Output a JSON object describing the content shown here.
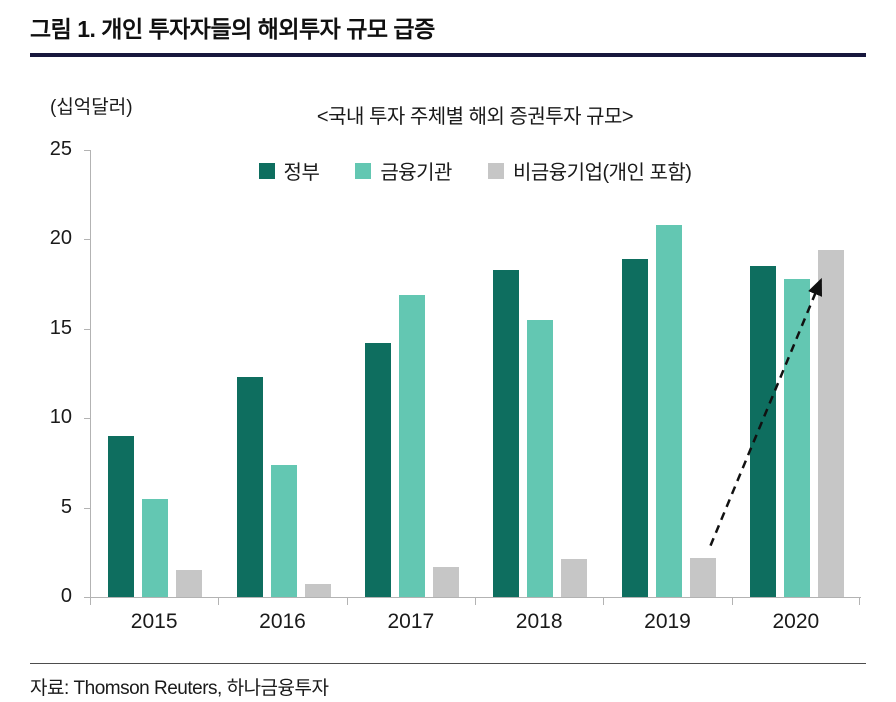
{
  "header": {
    "title": "그림 1. 개인 투자자들의 해외투자 규모 급증"
  },
  "chart_data": {
    "type": "bar",
    "title": "<국내 투자 주체별 해외 증권투자 규모>",
    "unit_label": "(십억달러)",
    "categories": [
      "2015",
      "2016",
      "2017",
      "2018",
      "2019",
      "2020"
    ],
    "series": [
      {
        "name": "정부",
        "color": "#0e6e5f",
        "values": [
          9.0,
          12.3,
          14.2,
          18.3,
          18.9,
          18.5
        ]
      },
      {
        "name": "금융기관",
        "color": "#63c7b2",
        "values": [
          5.5,
          7.4,
          16.9,
          15.5,
          20.8,
          17.8
        ]
      },
      {
        "name": "비금융기업(개인 포함)",
        "color": "#c6c6c6",
        "values": [
          1.5,
          0.7,
          1.7,
          2.1,
          2.2,
          19.4
        ]
      }
    ],
    "ylim": [
      0,
      25
    ],
    "ytick_step": 5,
    "legend_position": "top-center",
    "grid": false,
    "annotation": {
      "type": "dashed-arrow",
      "from_category": "2019",
      "to_category": "2020",
      "series": "비금융기업(개인 포함)",
      "color": "#111111"
    }
  },
  "footer": {
    "source": "자료: Thomson Reuters, 하나금융투자"
  }
}
